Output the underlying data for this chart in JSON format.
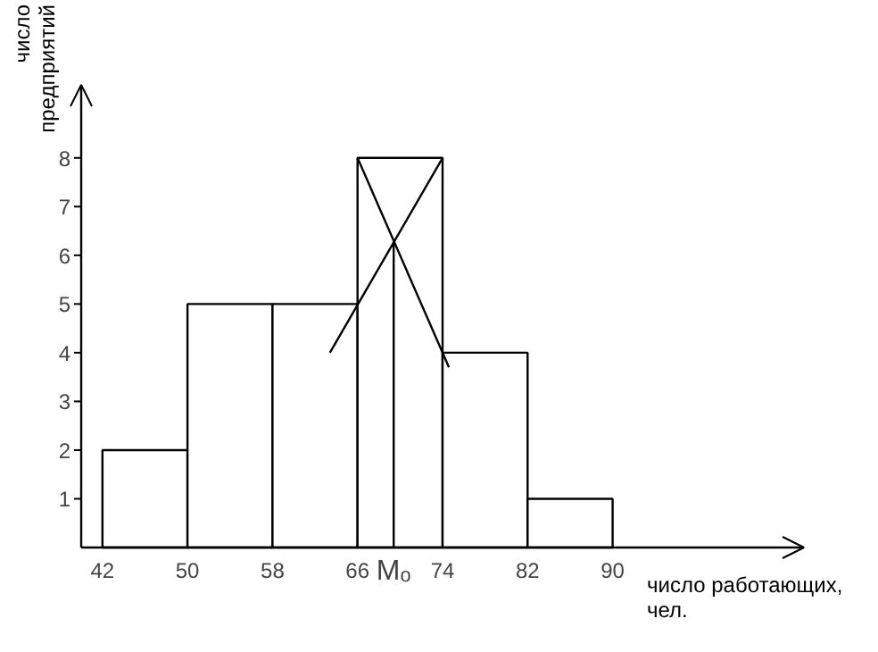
{
  "chart_data": {
    "type": "histogram",
    "xlabel": "число работающих,\nчел.",
    "ylabel": "число\nпредприятий",
    "bins": [
      42,
      50,
      58,
      66,
      74,
      82,
      90
    ],
    "values": [
      2,
      5,
      5,
      8,
      4,
      1
    ],
    "color": "#ffffff",
    "series": [
      {
        "type": "line",
        "color": "#000000",
        "x": [
          66,
          74.6
        ],
        "values": [
          8,
          3.7
        ]
      },
      {
        "type": "line",
        "color": "#000000",
        "x": [
          63.4,
          74
        ],
        "values": [
          4,
          8
        ]
      },
      {
        "type": "line",
        "color": "#000000",
        "x": [
          69.4,
          69.4
        ],
        "values": [
          0,
          6.3
        ]
      }
    ],
    "annotations": [
      {
        "text": "Mₒ",
        "x": 69.4,
        "y": 0
      }
    ],
    "xlim": [
      40,
      108
    ],
    "ylim": [
      0,
      9.5
    ],
    "xticks": [
      42,
      50,
      58,
      66,
      74,
      82,
      90
    ],
    "yticks": [
      1,
      2,
      3,
      4,
      5,
      6,
      7,
      8
    ],
    "grid": false
  }
}
